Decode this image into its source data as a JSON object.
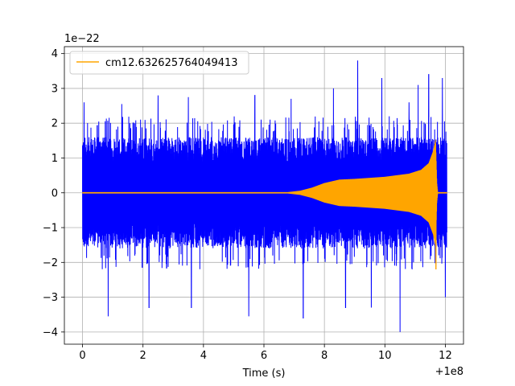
{
  "chart_data": {
    "type": "line",
    "title": "",
    "xlabel": "Time (s)",
    "ylabel": "",
    "x_offset_label": "+1e8",
    "y_scale_label": "1e−22",
    "xlim": [
      -0.6,
      12.6
    ],
    "ylim": [
      -4.35,
      4.2
    ],
    "x_ticks": [
      0,
      2,
      4,
      6,
      8,
      10,
      12
    ],
    "x_tick_labels": [
      "0",
      "2",
      "4",
      "6",
      "8",
      "10",
      "12"
    ],
    "y_ticks": [
      -4,
      -3,
      -2,
      -1,
      0,
      1,
      2,
      3,
      4
    ],
    "y_tick_labels": [
      "−4",
      "−3",
      "−2",
      "−1",
      "0",
      "1",
      "2",
      "3",
      "4"
    ],
    "grid": true,
    "legend_position": "top-left",
    "series": [
      {
        "name": "",
        "color": "#0000ff",
        "kind": "noise",
        "x_range": [
          0,
          12.05
        ],
        "typical_envelope": 1.6,
        "typical_peak": 2.2,
        "notable_peaks": [
          {
            "x": 0.05,
            "y": 2.6
          },
          {
            "x": 0.85,
            "y": -3.55
          },
          {
            "x": 1.3,
            "y": 2.55
          },
          {
            "x": 2.2,
            "y": -3.3
          },
          {
            "x": 2.5,
            "y": 2.8
          },
          {
            "x": 3.5,
            "y": 2.75
          },
          {
            "x": 3.6,
            "y": -3.3
          },
          {
            "x": 5.5,
            "y": -3.55
          },
          {
            "x": 5.7,
            "y": 2.8
          },
          {
            "x": 6.9,
            "y": 2.7
          },
          {
            "x": 7.3,
            "y": -3.6
          },
          {
            "x": 8.3,
            "y": 3.0
          },
          {
            "x": 8.7,
            "y": -3.3
          },
          {
            "x": 9.1,
            "y": 3.8
          },
          {
            "x": 9.55,
            "y": -3.3
          },
          {
            "x": 9.9,
            "y": 3.3
          },
          {
            "x": 10.5,
            "y": -4.0
          },
          {
            "x": 10.8,
            "y": 2.6
          },
          {
            "x": 11.1,
            "y": 3.1
          },
          {
            "x": 11.45,
            "y": 3.4
          },
          {
            "x": 11.9,
            "y": 3.3
          },
          {
            "x": 12.0,
            "y": -3.0
          }
        ]
      },
      {
        "name": "cm12.632625764049413",
        "color": "#ffa500",
        "kind": "chirp",
        "x_range": [
          0,
          12.05
        ],
        "envelope": [
          {
            "x": 0,
            "y": 0.02
          },
          {
            "x": 6.8,
            "y": 0.02
          },
          {
            "x": 7.2,
            "y": 0.06
          },
          {
            "x": 7.6,
            "y": 0.15
          },
          {
            "x": 8.0,
            "y": 0.28
          },
          {
            "x": 8.5,
            "y": 0.38
          },
          {
            "x": 9.0,
            "y": 0.4
          },
          {
            "x": 10.0,
            "y": 0.46
          },
          {
            "x": 10.8,
            "y": 0.55
          },
          {
            "x": 11.2,
            "y": 0.66
          },
          {
            "x": 11.45,
            "y": 0.85
          },
          {
            "x": 11.6,
            "y": 1.2
          },
          {
            "x": 11.68,
            "y": 1.55
          },
          {
            "x": 11.72,
            "y": 0.3
          },
          {
            "x": 11.75,
            "y": 0.02
          },
          {
            "x": 12.05,
            "y": 0.02
          }
        ],
        "trough_min": -2.2
      }
    ]
  }
}
